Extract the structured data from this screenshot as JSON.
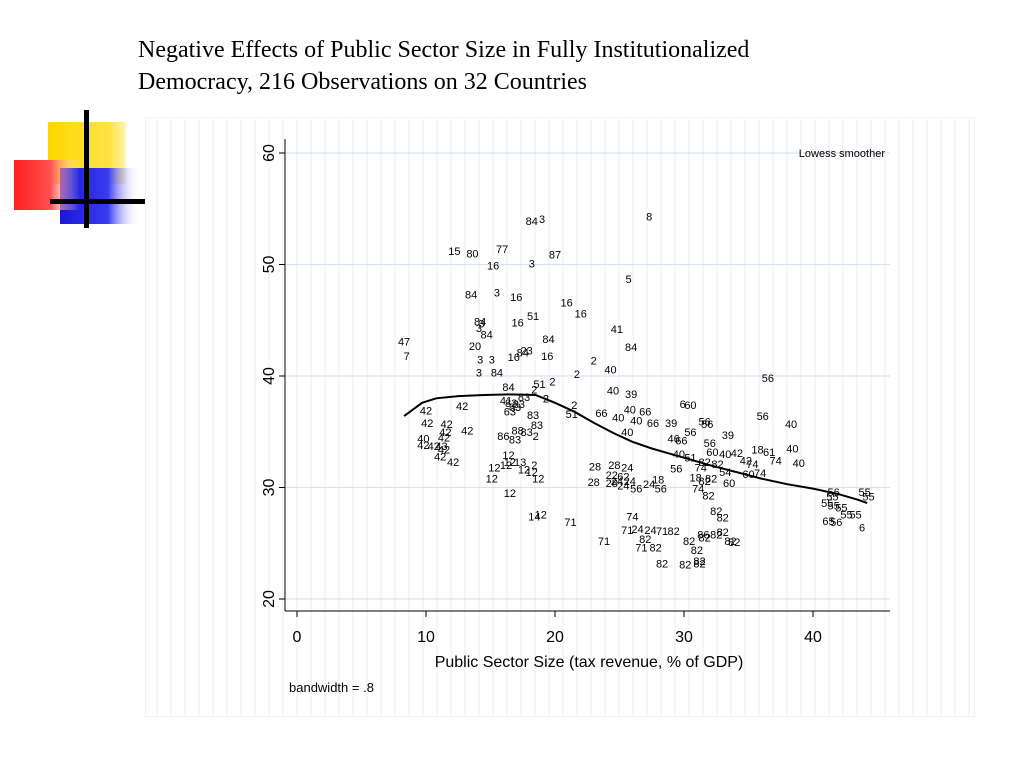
{
  "slide": {
    "title_line1": "Negative Effects of Public Sector Size in Fully Institutionalized",
    "title_line2": "Democracy, 216 Observations on 32 Countries",
    "decoration_colors": [
      "#FFD700",
      "#FF3030",
      "#2020E0",
      "#000000"
    ]
  },
  "chart_data": {
    "type": "scatter",
    "title": "",
    "xlabel": "Public Sector Size (tax revenue, % of GDP)",
    "ylabel": "",
    "xlim": [
      -1,
      46
    ],
    "ylim": [
      19,
      61
    ],
    "xticks": [
      "0",
      "10",
      "20",
      "30",
      "40"
    ],
    "yticks": [
      "20",
      "30",
      "40",
      "50",
      "60"
    ],
    "grid": true,
    "legend": {
      "position": "top-right",
      "entries": [
        "Lowess smoother"
      ]
    },
    "note": "bandwidth = .8",
    "marker": "country-code labels",
    "points": [
      {
        "x": 18.2,
        "y": 53.9,
        "label": "84"
      },
      {
        "x": 19.0,
        "y": 54.1,
        "label": "3"
      },
      {
        "x": 27.3,
        "y": 54.3,
        "label": "8"
      },
      {
        "x": 12.2,
        "y": 51.2,
        "label": "15"
      },
      {
        "x": 13.6,
        "y": 51.0,
        "label": "80"
      },
      {
        "x": 15.9,
        "y": 51.4,
        "label": "77"
      },
      {
        "x": 20.0,
        "y": 50.9,
        "label": "87"
      },
      {
        "x": 15.2,
        "y": 49.9,
        "label": "16"
      },
      {
        "x": 18.2,
        "y": 50.1,
        "label": "3"
      },
      {
        "x": 25.7,
        "y": 48.7,
        "label": "5"
      },
      {
        "x": 13.5,
        "y": 47.3,
        "label": "84"
      },
      {
        "x": 15.5,
        "y": 47.5,
        "label": "3"
      },
      {
        "x": 17.0,
        "y": 47.1,
        "label": "16"
      },
      {
        "x": 20.9,
        "y": 46.6,
        "label": "16"
      },
      {
        "x": 22.0,
        "y": 45.6,
        "label": "16"
      },
      {
        "x": 18.3,
        "y": 45.4,
        "label": "51"
      },
      {
        "x": 14.2,
        "y": 44.9,
        "label": "84"
      },
      {
        "x": 14.3,
        "y": 44.7,
        "label": "3"
      },
      {
        "x": 17.1,
        "y": 44.8,
        "label": "16"
      },
      {
        "x": 24.8,
        "y": 44.2,
        "label": "41"
      },
      {
        "x": 14.1,
        "y": 44.3,
        "label": "3"
      },
      {
        "x": 14.7,
        "y": 43.7,
        "label": "84"
      },
      {
        "x": 19.5,
        "y": 43.3,
        "label": "84"
      },
      {
        "x": 8.3,
        "y": 43.1,
        "label": "47"
      },
      {
        "x": 13.8,
        "y": 42.7,
        "label": "20"
      },
      {
        "x": 25.9,
        "y": 42.6,
        "label": "84"
      },
      {
        "x": 17.8,
        "y": 42.3,
        "label": "23"
      },
      {
        "x": 17.5,
        "y": 42.1,
        "label": "84"
      },
      {
        "x": 8.5,
        "y": 41.8,
        "label": "7"
      },
      {
        "x": 14.2,
        "y": 41.5,
        "label": "3"
      },
      {
        "x": 15.1,
        "y": 41.5,
        "label": "3"
      },
      {
        "x": 16.8,
        "y": 41.7,
        "label": "16"
      },
      {
        "x": 19.4,
        "y": 41.8,
        "label": "16"
      },
      {
        "x": 23.0,
        "y": 41.4,
        "label": "2"
      },
      {
        "x": 24.3,
        "y": 40.6,
        "label": "40"
      },
      {
        "x": 14.1,
        "y": 40.3,
        "label": "3"
      },
      {
        "x": 15.5,
        "y": 40.3,
        "label": "84"
      },
      {
        "x": 21.7,
        "y": 40.2,
        "label": "2"
      },
      {
        "x": 36.5,
        "y": 39.8,
        "label": "56"
      },
      {
        "x": 18.8,
        "y": 39.3,
        "label": "51"
      },
      {
        "x": 19.8,
        "y": 39.5,
        "label": "2"
      },
      {
        "x": 16.4,
        "y": 39.0,
        "label": "84"
      },
      {
        "x": 18.4,
        "y": 38.8,
        "label": "2"
      },
      {
        "x": 24.5,
        "y": 38.7,
        "label": "40"
      },
      {
        "x": 25.9,
        "y": 38.4,
        "label": "39"
      },
      {
        "x": 17.6,
        "y": 38.1,
        "label": "83"
      },
      {
        "x": 19.3,
        "y": 38.0,
        "label": "2"
      },
      {
        "x": 16.2,
        "y": 37.8,
        "label": "41"
      },
      {
        "x": 16.6,
        "y": 37.6,
        "label": "83"
      },
      {
        "x": 17.2,
        "y": 37.5,
        "label": "83"
      },
      {
        "x": 21.5,
        "y": 37.4,
        "label": "2"
      },
      {
        "x": 12.8,
        "y": 37.3,
        "label": "42"
      },
      {
        "x": 29.9,
        "y": 37.5,
        "label": "6"
      },
      {
        "x": 30.5,
        "y": 37.4,
        "label": "60"
      },
      {
        "x": 16.9,
        "y": 37.2,
        "label": "83"
      },
      {
        "x": 25.8,
        "y": 37.0,
        "label": "40"
      },
      {
        "x": 10.0,
        "y": 36.9,
        "label": "42"
      },
      {
        "x": 16.5,
        "y": 36.8,
        "label": "63"
      },
      {
        "x": 23.6,
        "y": 36.7,
        "label": "66"
      },
      {
        "x": 27.0,
        "y": 36.8,
        "label": "66"
      },
      {
        "x": 21.3,
        "y": 36.6,
        "label": "51"
      },
      {
        "x": 18.3,
        "y": 36.5,
        "label": "83"
      },
      {
        "x": 24.9,
        "y": 36.3,
        "label": "40"
      },
      {
        "x": 36.1,
        "y": 36.4,
        "label": "56"
      },
      {
        "x": 26.3,
        "y": 36.0,
        "label": "40"
      },
      {
        "x": 10.1,
        "y": 35.8,
        "label": "42"
      },
      {
        "x": 11.6,
        "y": 35.7,
        "label": "42"
      },
      {
        "x": 27.6,
        "y": 35.8,
        "label": "66"
      },
      {
        "x": 29.0,
        "y": 35.8,
        "label": "39"
      },
      {
        "x": 31.6,
        "y": 35.9,
        "label": "56"
      },
      {
        "x": 18.6,
        "y": 35.6,
        "label": "83"
      },
      {
        "x": 38.3,
        "y": 35.7,
        "label": "40"
      },
      {
        "x": 31.8,
        "y": 35.7,
        "label": "56"
      },
      {
        "x": 13.2,
        "y": 35.1,
        "label": "42"
      },
      {
        "x": 11.5,
        "y": 35.0,
        "label": "42"
      },
      {
        "x": 17.1,
        "y": 35.1,
        "label": "88"
      },
      {
        "x": 17.8,
        "y": 35.0,
        "label": "83"
      },
      {
        "x": 25.6,
        "y": 35.0,
        "label": "40"
      },
      {
        "x": 30.5,
        "y": 35.0,
        "label": "56"
      },
      {
        "x": 33.4,
        "y": 34.7,
        "label": "39"
      },
      {
        "x": 9.8,
        "y": 34.4,
        "label": "40"
      },
      {
        "x": 11.4,
        "y": 34.5,
        "label": "42"
      },
      {
        "x": 16.0,
        "y": 34.6,
        "label": "86"
      },
      {
        "x": 16.9,
        "y": 34.3,
        "label": "83"
      },
      {
        "x": 18.5,
        "y": 34.6,
        "label": "2"
      },
      {
        "x": 29.2,
        "y": 34.4,
        "label": "46"
      },
      {
        "x": 29.8,
        "y": 34.2,
        "label": "66"
      },
      {
        "x": 32.0,
        "y": 34.0,
        "label": "56"
      },
      {
        "x": 9.8,
        "y": 33.8,
        "label": "42"
      },
      {
        "x": 10.6,
        "y": 33.7,
        "label": "42"
      },
      {
        "x": 11.2,
        "y": 33.7,
        "label": "43"
      },
      {
        "x": 11.4,
        "y": 33.4,
        "label": "42"
      },
      {
        "x": 38.4,
        "y": 33.5,
        "label": "40"
      },
      {
        "x": 35.7,
        "y": 33.4,
        "label": "18"
      },
      {
        "x": 36.6,
        "y": 33.2,
        "label": "61"
      },
      {
        "x": 29.6,
        "y": 33.0,
        "label": "40"
      },
      {
        "x": 32.2,
        "y": 33.2,
        "label": "60"
      },
      {
        "x": 33.2,
        "y": 33.0,
        "label": "40"
      },
      {
        "x": 34.1,
        "y": 33.1,
        "label": "42"
      },
      {
        "x": 16.4,
        "y": 32.9,
        "label": "12"
      },
      {
        "x": 11.1,
        "y": 32.8,
        "label": "42"
      },
      {
        "x": 30.5,
        "y": 32.7,
        "label": "51"
      },
      {
        "x": 12.1,
        "y": 32.3,
        "label": "42"
      },
      {
        "x": 16.5,
        "y": 32.3,
        "label": "12"
      },
      {
        "x": 17.3,
        "y": 32.3,
        "label": "13"
      },
      {
        "x": 34.8,
        "y": 32.4,
        "label": "42"
      },
      {
        "x": 37.1,
        "y": 32.4,
        "label": "74"
      },
      {
        "x": 38.9,
        "y": 32.2,
        "label": "40"
      },
      {
        "x": 16.2,
        "y": 32.0,
        "label": "12"
      },
      {
        "x": 18.4,
        "y": 32.0,
        "label": "2"
      },
      {
        "x": 31.6,
        "y": 32.3,
        "label": "82"
      },
      {
        "x": 32.6,
        "y": 32.1,
        "label": "82"
      },
      {
        "x": 35.3,
        "y": 32.1,
        "label": "74"
      },
      {
        "x": 15.3,
        "y": 31.8,
        "label": "12"
      },
      {
        "x": 17.6,
        "y": 31.6,
        "label": "12"
      },
      {
        "x": 23.1,
        "y": 31.9,
        "label": "28"
      },
      {
        "x": 24.6,
        "y": 32.0,
        "label": "28"
      },
      {
        "x": 25.6,
        "y": 31.8,
        "label": "24"
      },
      {
        "x": 29.4,
        "y": 31.7,
        "label": "56"
      },
      {
        "x": 31.3,
        "y": 31.8,
        "label": "74"
      },
      {
        "x": 18.2,
        "y": 31.4,
        "label": "12"
      },
      {
        "x": 33.2,
        "y": 31.4,
        "label": "54"
      },
      {
        "x": 35.0,
        "y": 31.2,
        "label": "60"
      },
      {
        "x": 35.9,
        "y": 31.3,
        "label": "74"
      },
      {
        "x": 15.1,
        "y": 30.8,
        "label": "12"
      },
      {
        "x": 18.7,
        "y": 30.8,
        "label": "12"
      },
      {
        "x": 24.4,
        "y": 31.1,
        "label": "22"
      },
      {
        "x": 25.3,
        "y": 31.0,
        "label": "62"
      },
      {
        "x": 30.9,
        "y": 30.9,
        "label": "18"
      },
      {
        "x": 32.1,
        "y": 30.8,
        "label": "82"
      },
      {
        "x": 24.8,
        "y": 30.6,
        "label": "24"
      },
      {
        "x": 25.8,
        "y": 30.6,
        "label": "24"
      },
      {
        "x": 28.0,
        "y": 30.7,
        "label": "18"
      },
      {
        "x": 31.6,
        "y": 30.6,
        "label": "82"
      },
      {
        "x": 23.0,
        "y": 30.5,
        "label": "28"
      },
      {
        "x": 24.4,
        "y": 30.4,
        "label": "28"
      },
      {
        "x": 25.3,
        "y": 30.2,
        "label": "24"
      },
      {
        "x": 27.3,
        "y": 30.3,
        "label": "24"
      },
      {
        "x": 33.5,
        "y": 30.4,
        "label": "60"
      },
      {
        "x": 26.3,
        "y": 29.9,
        "label": "56"
      },
      {
        "x": 28.2,
        "y": 29.9,
        "label": "56"
      },
      {
        "x": 31.1,
        "y": 29.9,
        "label": "74"
      },
      {
        "x": 41.6,
        "y": 29.6,
        "label": "56"
      },
      {
        "x": 44.0,
        "y": 29.6,
        "label": "55"
      },
      {
        "x": 16.5,
        "y": 29.5,
        "label": "12"
      },
      {
        "x": 31.9,
        "y": 29.3,
        "label": "82"
      },
      {
        "x": 41.5,
        "y": 29.2,
        "label": "55"
      },
      {
        "x": 44.3,
        "y": 29.2,
        "label": "55"
      },
      {
        "x": 41.1,
        "y": 28.6,
        "label": "55"
      },
      {
        "x": 41.6,
        "y": 28.4,
        "label": "55"
      },
      {
        "x": 42.2,
        "y": 28.2,
        "label": "55"
      },
      {
        "x": 42.6,
        "y": 27.6,
        "label": "55"
      },
      {
        "x": 43.3,
        "y": 27.6,
        "label": "55"
      },
      {
        "x": 32.5,
        "y": 27.9,
        "label": "82"
      },
      {
        "x": 18.9,
        "y": 27.6,
        "label": "12"
      },
      {
        "x": 18.4,
        "y": 27.4,
        "label": "14"
      },
      {
        "x": 26.0,
        "y": 27.4,
        "label": "74"
      },
      {
        "x": 33.0,
        "y": 27.3,
        "label": "82"
      },
      {
        "x": 41.2,
        "y": 27.0,
        "label": "65"
      },
      {
        "x": 41.8,
        "y": 26.9,
        "label": "56"
      },
      {
        "x": 21.2,
        "y": 26.9,
        "label": "71"
      },
      {
        "x": 43.8,
        "y": 26.4,
        "label": "6"
      },
      {
        "x": 25.6,
        "y": 26.2,
        "label": "71"
      },
      {
        "x": 26.4,
        "y": 26.3,
        "label": "24"
      },
      {
        "x": 27.4,
        "y": 26.2,
        "label": "24"
      },
      {
        "x": 28.3,
        "y": 26.1,
        "label": "71"
      },
      {
        "x": 29.2,
        "y": 26.1,
        "label": "82"
      },
      {
        "x": 31.5,
        "y": 25.8,
        "label": "86"
      },
      {
        "x": 32.5,
        "y": 25.8,
        "label": "82"
      },
      {
        "x": 33.0,
        "y": 26.0,
        "label": "82"
      },
      {
        "x": 31.6,
        "y": 25.5,
        "label": "82"
      },
      {
        "x": 23.8,
        "y": 25.2,
        "label": "71"
      },
      {
        "x": 27.0,
        "y": 25.4,
        "label": "82"
      },
      {
        "x": 30.4,
        "y": 25.2,
        "label": "82"
      },
      {
        "x": 33.6,
        "y": 25.2,
        "label": "82"
      },
      {
        "x": 33.9,
        "y": 25.1,
        "label": "82"
      },
      {
        "x": 26.7,
        "y": 24.6,
        "label": "71"
      },
      {
        "x": 27.8,
        "y": 24.6,
        "label": "82"
      },
      {
        "x": 31.0,
        "y": 24.4,
        "label": "82"
      },
      {
        "x": 28.3,
        "y": 23.2,
        "label": "82"
      },
      {
        "x": 30.1,
        "y": 23.1,
        "label": "82"
      },
      {
        "x": 31.2,
        "y": 23.2,
        "label": "82"
      },
      {
        "x": 31.2,
        "y": 23.4,
        "label": "82"
      }
    ],
    "lowess": [
      [
        8.3,
        36.4
      ],
      [
        9.0,
        37.0
      ],
      [
        9.7,
        37.6
      ],
      [
        10.8,
        38.0
      ],
      [
        12.5,
        38.2
      ],
      [
        14.5,
        38.3
      ],
      [
        16.5,
        38.35
      ],
      [
        18.5,
        38.3
      ],
      [
        20.0,
        37.6
      ],
      [
        21.5,
        36.8
      ],
      [
        23.0,
        35.8
      ],
      [
        24.5,
        34.9
      ],
      [
        26.0,
        34.1
      ],
      [
        27.5,
        33.5
      ],
      [
        29.0,
        33.0
      ],
      [
        30.5,
        32.5
      ],
      [
        32.0,
        32.0
      ],
      [
        34.0,
        31.4
      ],
      [
        36.0,
        30.8
      ],
      [
        38.0,
        30.3
      ],
      [
        40.0,
        29.9
      ],
      [
        42.0,
        29.4
      ],
      [
        43.5,
        28.9
      ],
      [
        44.2,
        28.6
      ]
    ]
  }
}
